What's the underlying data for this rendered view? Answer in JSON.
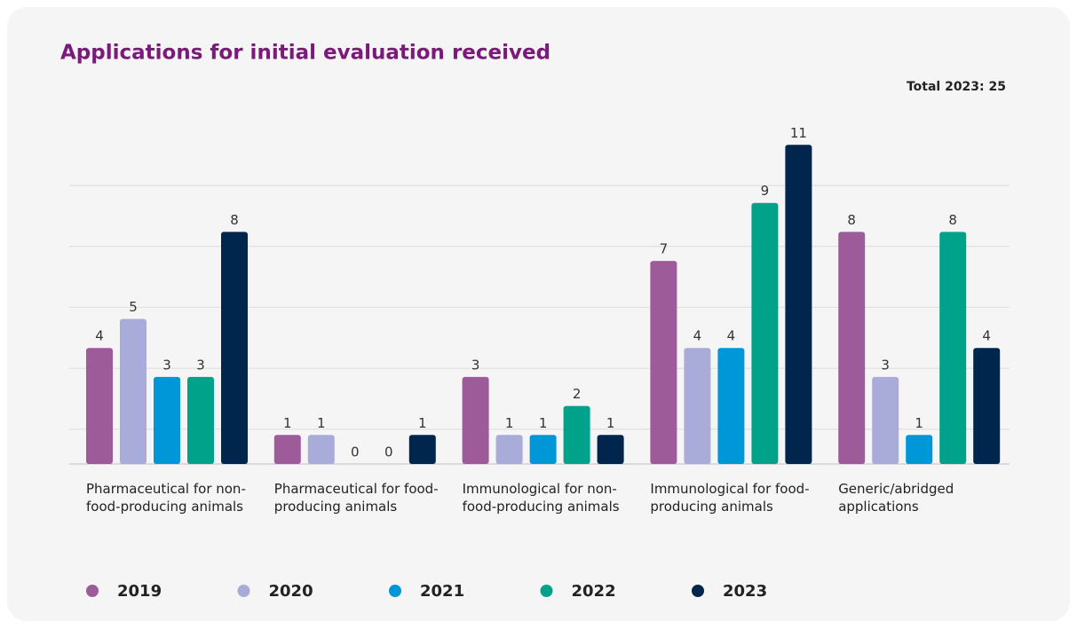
{
  "chart_data": {
    "type": "bar",
    "title": "Applications for initial evaluation received",
    "annotation": "Total 2023: 25",
    "categories": [
      "Pharmaceutical for non-food-producing animals",
      "Pharmaceutical for food-producing animals",
      "Immunological for non-food-producing animals",
      "Immunological for food-producing animals",
      "Generic/abridged applications"
    ],
    "series": [
      {
        "name": "2019",
        "color": "#9e5b9a",
        "values": [
          4,
          1,
          3,
          7,
          8
        ]
      },
      {
        "name": "2020",
        "color": "#a9acd8",
        "values": [
          5,
          1,
          1,
          4,
          3
        ]
      },
      {
        "name": "2021",
        "color": "#0097d9",
        "values": [
          3,
          0,
          1,
          4,
          1
        ]
      },
      {
        "name": "2022",
        "color": "#00a38a",
        "values": [
          3,
          0,
          2,
          9,
          8
        ]
      },
      {
        "name": "2023",
        "color": "#00264d",
        "values": [
          8,
          1,
          1,
          11,
          4
        ]
      }
    ],
    "ylim": [
      0,
      12
    ],
    "yticks": [
      1.2,
      3.3,
      5.4,
      7.5,
      9.6
    ],
    "grid": true,
    "legend": "bottom"
  }
}
